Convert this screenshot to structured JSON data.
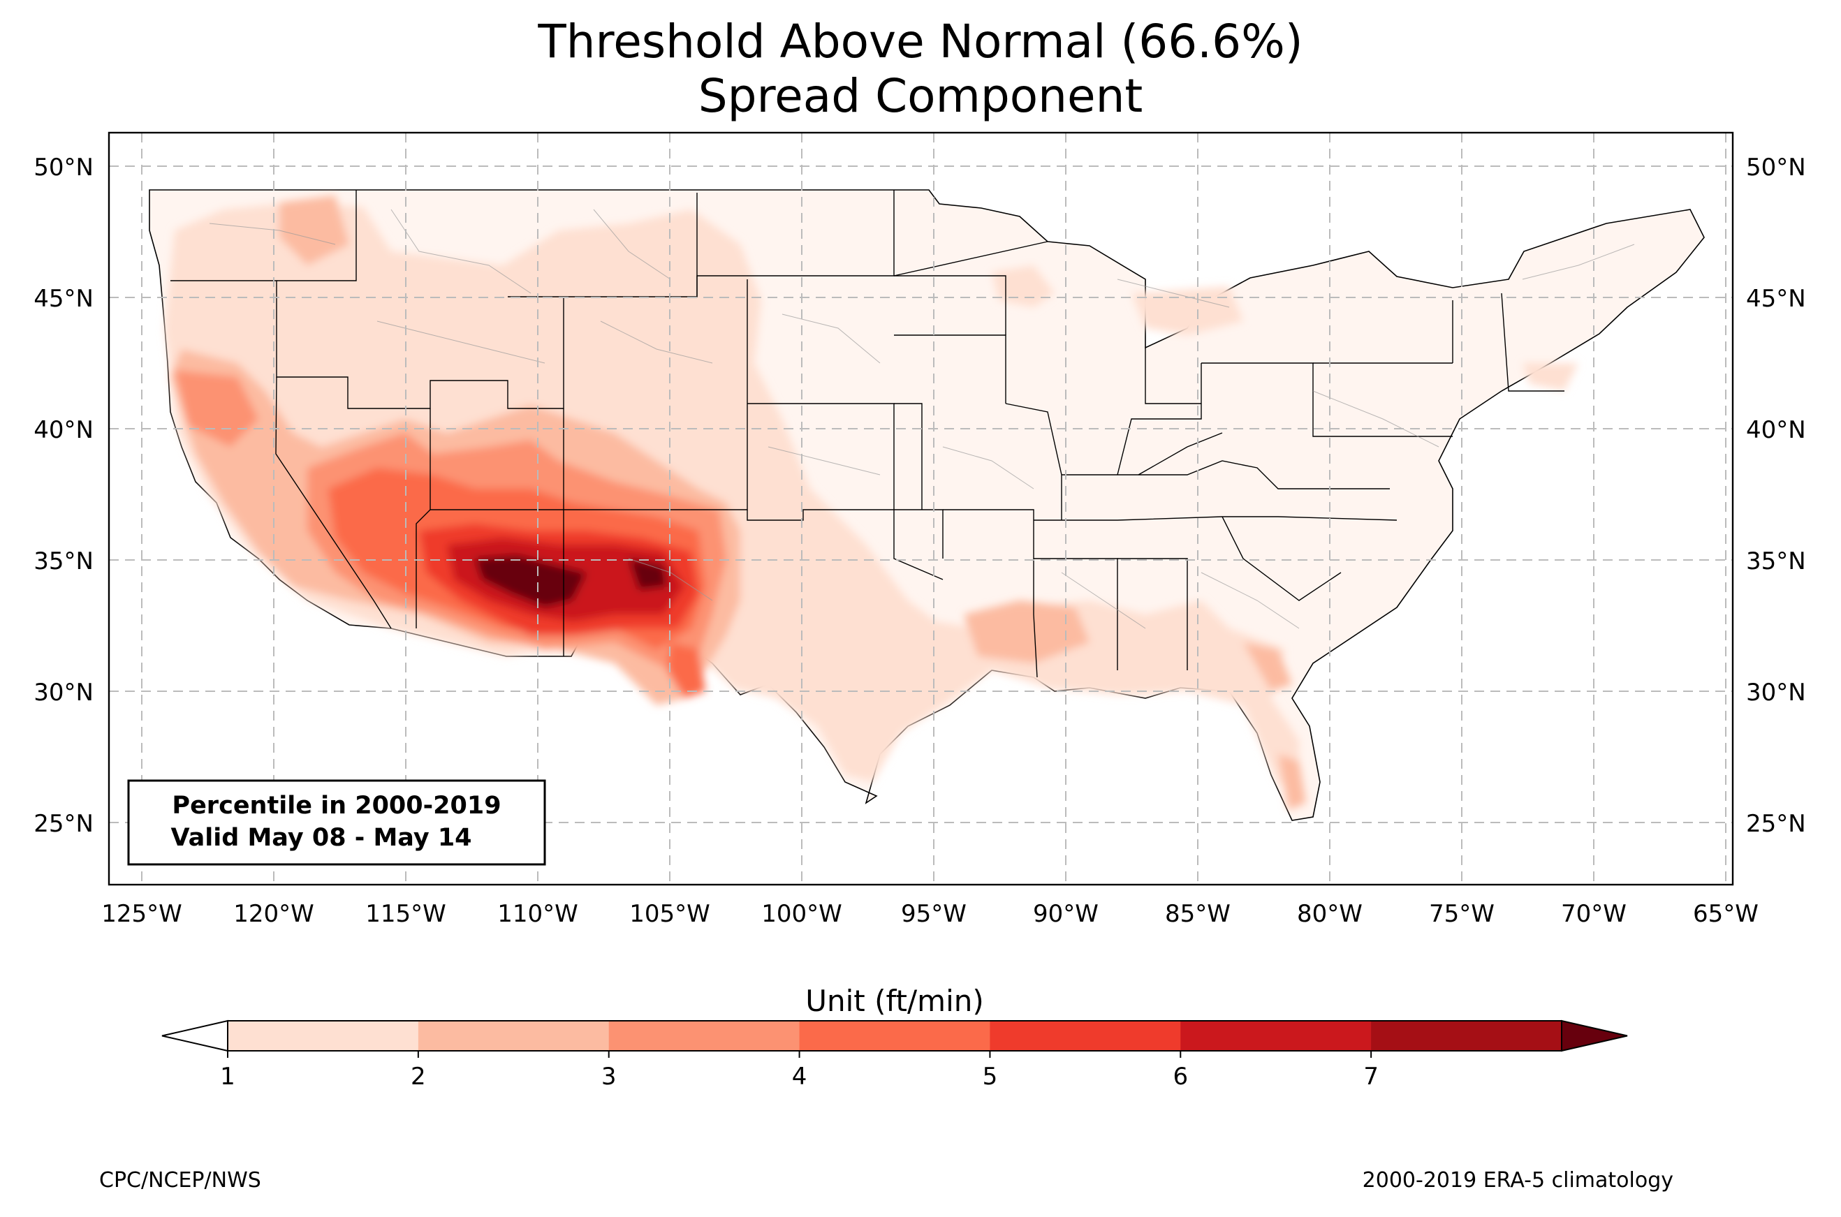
{
  "title_line1": "Threshold Above Normal (66.6%)",
  "title_line2": "Spread Component",
  "info_box": {
    "line1": "Percentile in 2000-2019",
    "line2": "Valid May 08 - May 14"
  },
  "lat_labels": [
    "25°N",
    "30°N",
    "35°N",
    "40°N",
    "45°N",
    "50°N"
  ],
  "lon_labels": [
    "125°W",
    "120°W",
    "115°W",
    "110°W",
    "105°W",
    "100°W",
    "95°W",
    "90°W",
    "85°W",
    "80°W",
    "75°W",
    "70°W",
    "65°W"
  ],
  "colorbar": {
    "label": "Unit (ft/min)",
    "ticks": [
      "1",
      "2",
      "3",
      "4",
      "5",
      "6",
      "7"
    ],
    "colors": [
      "#fee0d2",
      "#fcbba1",
      "#fc9272",
      "#fb6a4a",
      "#ef3b2c",
      "#cb181d",
      "#a50f15"
    ],
    "under_color": "#ffffff",
    "over_color": "#67000d"
  },
  "footer_left": "CPC/NCEP/NWS",
  "footer_right": "2000-2019 ERA-5 climatology"
}
